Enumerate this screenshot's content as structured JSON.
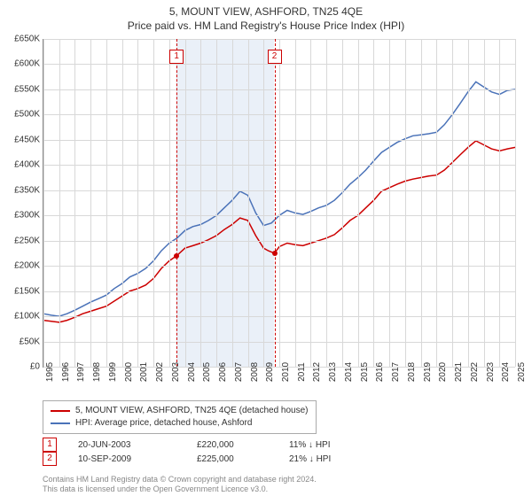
{
  "title_main": "5, MOUNT VIEW, ASHFORD, TN25 4QE",
  "title_sub": "Price paid vs. HM Land Registry's House Price Index (HPI)",
  "chart": {
    "type": "line",
    "ylim": [
      0,
      650000
    ],
    "ytick_step": 50000,
    "ytick_labels": [
      "£0",
      "£50K",
      "£100K",
      "£150K",
      "£200K",
      "£250K",
      "£300K",
      "£350K",
      "£400K",
      "£450K",
      "£500K",
      "£550K",
      "£600K",
      "£650K"
    ],
    "x_years": [
      1995,
      1996,
      1997,
      1998,
      1999,
      2000,
      2001,
      2002,
      2003,
      2004,
      2005,
      2006,
      2007,
      2008,
      2009,
      2010,
      2011,
      2012,
      2013,
      2014,
      2015,
      2016,
      2017,
      2018,
      2019,
      2020,
      2021,
      2022,
      2023,
      2024,
      2025
    ],
    "background_color": "#ffffff",
    "grid_color": "#d8d8d8",
    "highlight_band_color": "#eaf0f8",
    "highlight_band": {
      "start_year": 2003.47,
      "end_year": 2009.69
    },
    "line_width": 1.5,
    "series": [
      {
        "name": "property",
        "label": "5, MOUNT VIEW, ASHFORD, TN25 4QE (detached house)",
        "color": "#cc0000",
        "points": [
          [
            1995.0,
            92000
          ],
          [
            1995.5,
            90000
          ],
          [
            1996.0,
            88000
          ],
          [
            1996.5,
            92000
          ],
          [
            1997.0,
            98000
          ],
          [
            1997.5,
            105000
          ],
          [
            1998.0,
            110000
          ],
          [
            1998.5,
            115000
          ],
          [
            1999.0,
            120000
          ],
          [
            1999.5,
            130000
          ],
          [
            2000.0,
            140000
          ],
          [
            2000.5,
            150000
          ],
          [
            2001.0,
            155000
          ],
          [
            2001.5,
            162000
          ],
          [
            2002.0,
            175000
          ],
          [
            2002.5,
            195000
          ],
          [
            2003.0,
            210000
          ],
          [
            2003.47,
            220000
          ],
          [
            2004.0,
            235000
          ],
          [
            2004.5,
            240000
          ],
          [
            2005.0,
            245000
          ],
          [
            2005.5,
            252000
          ],
          [
            2006.0,
            260000
          ],
          [
            2006.5,
            272000
          ],
          [
            2007.0,
            282000
          ],
          [
            2007.5,
            295000
          ],
          [
            2008.0,
            290000
          ],
          [
            2008.5,
            260000
          ],
          [
            2009.0,
            235000
          ],
          [
            2009.3,
            230000
          ],
          [
            2009.69,
            225000
          ],
          [
            2010.0,
            238000
          ],
          [
            2010.5,
            245000
          ],
          [
            2011.0,
            242000
          ],
          [
            2011.5,
            240000
          ],
          [
            2012.0,
            245000
          ],
          [
            2012.5,
            250000
          ],
          [
            2013.0,
            255000
          ],
          [
            2013.5,
            262000
          ],
          [
            2014.0,
            275000
          ],
          [
            2014.5,
            290000
          ],
          [
            2015.0,
            300000
          ],
          [
            2015.5,
            315000
          ],
          [
            2016.0,
            330000
          ],
          [
            2016.5,
            348000
          ],
          [
            2017.0,
            355000
          ],
          [
            2017.5,
            362000
          ],
          [
            2018.0,
            368000
          ],
          [
            2018.5,
            372000
          ],
          [
            2019.0,
            375000
          ],
          [
            2019.5,
            378000
          ],
          [
            2020.0,
            380000
          ],
          [
            2020.5,
            390000
          ],
          [
            2021.0,
            405000
          ],
          [
            2021.5,
            420000
          ],
          [
            2022.0,
            435000
          ],
          [
            2022.5,
            448000
          ],
          [
            2023.0,
            440000
          ],
          [
            2023.5,
            432000
          ],
          [
            2024.0,
            428000
          ],
          [
            2024.5,
            432000
          ],
          [
            2025.0,
            435000
          ]
        ]
      },
      {
        "name": "hpi",
        "label": "HPI: Average price, detached house, Ashford",
        "color": "#4a72b8",
        "points": [
          [
            1995.0,
            105000
          ],
          [
            1995.5,
            102000
          ],
          [
            1996.0,
            100000
          ],
          [
            1996.5,
            105000
          ],
          [
            1997.0,
            112000
          ],
          [
            1997.5,
            120000
          ],
          [
            1998.0,
            128000
          ],
          [
            1998.5,
            135000
          ],
          [
            1999.0,
            142000
          ],
          [
            1999.5,
            155000
          ],
          [
            2000.0,
            165000
          ],
          [
            2000.5,
            178000
          ],
          [
            2001.0,
            185000
          ],
          [
            2001.5,
            195000
          ],
          [
            2002.0,
            210000
          ],
          [
            2002.5,
            230000
          ],
          [
            2003.0,
            245000
          ],
          [
            2003.5,
            255000
          ],
          [
            2004.0,
            270000
          ],
          [
            2004.5,
            278000
          ],
          [
            2005.0,
            282000
          ],
          [
            2005.5,
            290000
          ],
          [
            2006.0,
            300000
          ],
          [
            2006.5,
            315000
          ],
          [
            2007.0,
            330000
          ],
          [
            2007.5,
            348000
          ],
          [
            2008.0,
            340000
          ],
          [
            2008.5,
            305000
          ],
          [
            2009.0,
            280000
          ],
          [
            2009.5,
            285000
          ],
          [
            2010.0,
            300000
          ],
          [
            2010.5,
            310000
          ],
          [
            2011.0,
            305000
          ],
          [
            2011.5,
            302000
          ],
          [
            2012.0,
            308000
          ],
          [
            2012.5,
            315000
          ],
          [
            2013.0,
            320000
          ],
          [
            2013.5,
            330000
          ],
          [
            2014.0,
            345000
          ],
          [
            2014.5,
            362000
          ],
          [
            2015.0,
            375000
          ],
          [
            2015.5,
            390000
          ],
          [
            2016.0,
            408000
          ],
          [
            2016.5,
            425000
          ],
          [
            2017.0,
            435000
          ],
          [
            2017.5,
            445000
          ],
          [
            2018.0,
            452000
          ],
          [
            2018.5,
            458000
          ],
          [
            2019.0,
            460000
          ],
          [
            2019.5,
            462000
          ],
          [
            2020.0,
            465000
          ],
          [
            2020.5,
            480000
          ],
          [
            2021.0,
            500000
          ],
          [
            2021.5,
            522000
          ],
          [
            2022.0,
            545000
          ],
          [
            2022.5,
            565000
          ],
          [
            2023.0,
            555000
          ],
          [
            2023.5,
            545000
          ],
          [
            2024.0,
            540000
          ],
          [
            2024.5,
            548000
          ],
          [
            2025.0,
            550000
          ]
        ]
      }
    ],
    "markers": [
      {
        "n": "1",
        "year": 2003.47,
        "price": 220000
      },
      {
        "n": "2",
        "year": 2009.69,
        "price": 225000
      }
    ]
  },
  "transactions": [
    {
      "n": "1",
      "date": "20-JUN-2003",
      "price": "£220,000",
      "delta": "11% ↓ HPI"
    },
    {
      "n": "2",
      "date": "10-SEP-2009",
      "price": "£225,000",
      "delta": "21% ↓ HPI"
    }
  ],
  "footer_line1": "Contains HM Land Registry data © Crown copyright and database right 2024.",
  "footer_line2": "This data is licensed under the Open Government Licence v3.0."
}
